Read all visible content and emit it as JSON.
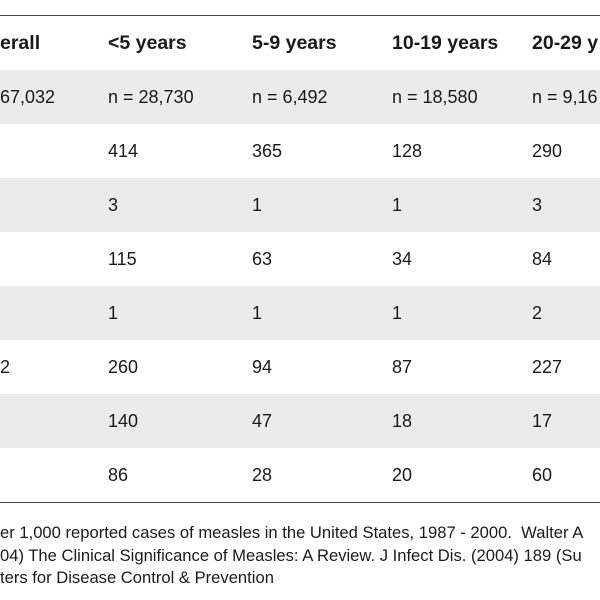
{
  "colors": {
    "text": "#1a1a1a",
    "band_fill": "#ebebeb",
    "rule": "#444444"
  },
  "chart_data": {
    "type": "table",
    "columns": [
      "erall",
      "<5 years",
      "5-9 years",
      "10-19 years",
      "20-29 y"
    ],
    "rows": [
      [
        "67,032",
        "n = 28,730",
        "n = 6,492",
        "n = 18,580",
        "n = 9,16"
      ],
      [
        null,
        "414",
        "365",
        "128",
        "290"
      ],
      [
        null,
        "3",
        "1",
        "1",
        "3"
      ],
      [
        null,
        "115",
        "63",
        "34",
        "84"
      ],
      [
        null,
        "1",
        "1",
        "1",
        "2"
      ],
      [
        "2",
        "260",
        "94",
        "87",
        "227"
      ],
      [
        null,
        "140",
        "47",
        "18",
        "17"
      ],
      [
        null,
        "86",
        "28",
        "20",
        "60"
      ]
    ]
  },
  "source_note": {
    "lines": [
      "er 1,000 reported cases of measles in the United States, 1987 - 2000.  Walter A",
      "04) The Clinical Significance of Measles: A Review. J Infect Dis. (2004) 189 (Su",
      "ters for Disease Control & Prevention"
    ]
  }
}
